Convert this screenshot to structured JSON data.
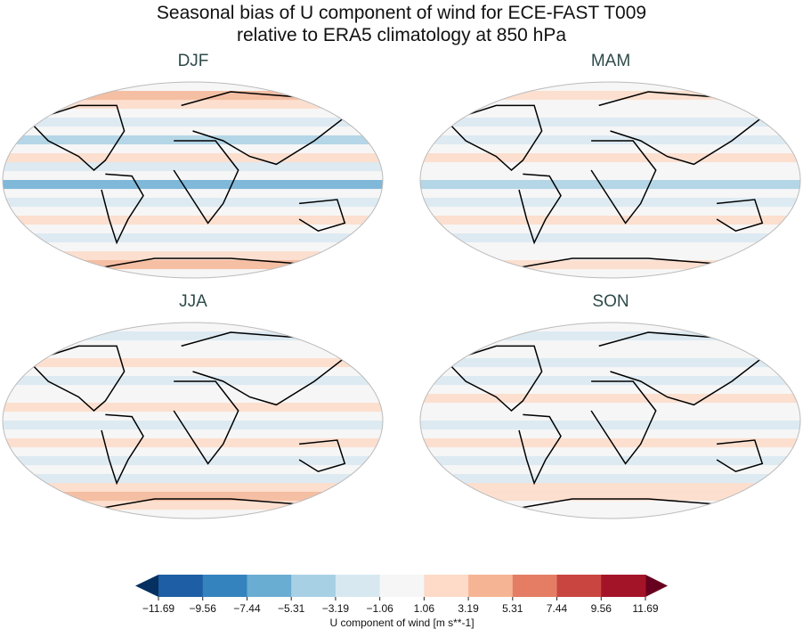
{
  "title_line1": "Seasonal bias of U component of wind for ECE-FAST T009",
  "title_line2": "relative to ERA5 climatology at 850 hPa",
  "panels": [
    {
      "label": "DJF"
    },
    {
      "label": "MAM"
    },
    {
      "label": "JJA"
    },
    {
      "label": "SON"
    }
  ],
  "colorbar": {
    "label": "U component of wind [m s**-1]",
    "ticks": [
      "−11.69",
      "−9.56",
      "−7.44",
      "−5.31",
      "−3.19",
      "−1.06",
      "1.06",
      "3.19",
      "5.31",
      "7.44",
      "9.56",
      "11.69"
    ],
    "colors": [
      "#1d5ea4",
      "#3583be",
      "#6aadd3",
      "#a8d0e4",
      "#d8e8f1",
      "#f6f6f6",
      "#fddbc8",
      "#f5b595",
      "#e47d64",
      "#c94540",
      "#a41428"
    ],
    "extend_low_color": "#053061",
    "extend_high_color": "#67001f",
    "extend": "both"
  }
}
